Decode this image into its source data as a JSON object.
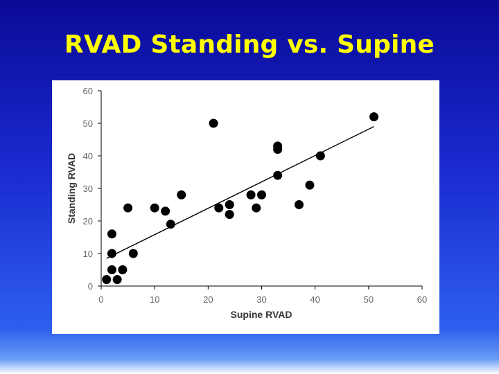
{
  "slide": {
    "title": "RVAD Standing vs. Supine"
  },
  "chart_data": {
    "type": "scatter",
    "title": "",
    "xlabel": "Supine RVAD",
    "ylabel": "Standing RVAD",
    "xlim": [
      0,
      60
    ],
    "ylim": [
      0,
      60
    ],
    "xticks": [
      0,
      10,
      20,
      30,
      40,
      50,
      60
    ],
    "yticks": [
      0,
      10,
      20,
      30,
      40,
      50,
      60
    ],
    "grid": false,
    "points": [
      {
        "x": 1,
        "y": 2
      },
      {
        "x": 3,
        "y": 2
      },
      {
        "x": 2,
        "y": 5
      },
      {
        "x": 4,
        "y": 5
      },
      {
        "x": 2,
        "y": 10
      },
      {
        "x": 6,
        "y": 10
      },
      {
        "x": 2,
        "y": 16
      },
      {
        "x": 5,
        "y": 24
      },
      {
        "x": 10,
        "y": 24
      },
      {
        "x": 12,
        "y": 23
      },
      {
        "x": 13,
        "y": 19
      },
      {
        "x": 15,
        "y": 28
      },
      {
        "x": 21,
        "y": 50
      },
      {
        "x": 22,
        "y": 24
      },
      {
        "x": 24,
        "y": 25
      },
      {
        "x": 24,
        "y": 22
      },
      {
        "x": 28,
        "y": 28
      },
      {
        "x": 29,
        "y": 24
      },
      {
        "x": 30,
        "y": 28
      },
      {
        "x": 33,
        "y": 43
      },
      {
        "x": 33,
        "y": 42
      },
      {
        "x": 33,
        "y": 34
      },
      {
        "x": 37,
        "y": 25
      },
      {
        "x": 39,
        "y": 31
      },
      {
        "x": 41,
        "y": 40
      },
      {
        "x": 51,
        "y": 52
      }
    ],
    "trendline": {
      "x": [
        1,
        51
      ],
      "y": [
        8.5,
        49
      ]
    }
  }
}
